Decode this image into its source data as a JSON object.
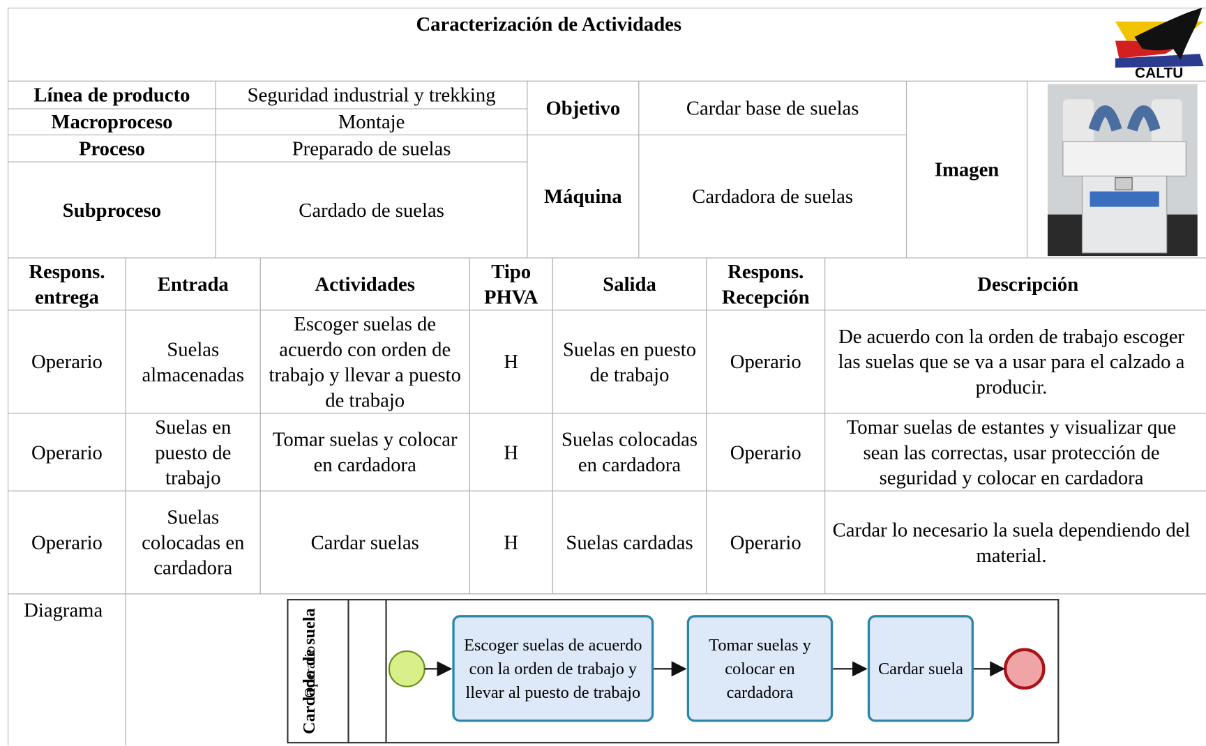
{
  "header": {
    "title": "Caracterización de Actividades",
    "logo_text": "CALTU"
  },
  "info": {
    "rows": [
      {
        "label": "Línea de producto",
        "value": "Seguridad industrial y trekking"
      },
      {
        "label": "Macroproceso",
        "value": "Montaje"
      },
      {
        "label": "Proceso",
        "value": "Preparado de suelas"
      },
      {
        "label": "Subproceso",
        "value": "Cardado de suelas"
      }
    ],
    "objective": {
      "label": "Objetivo",
      "value": "Cardar base de suelas"
    },
    "machine": {
      "label": "Máquina",
      "value": "Cardadora de suelas"
    },
    "image_label": "Imagen"
  },
  "table": {
    "headers": [
      "Respons. entrega",
      "Entrada",
      "Actividades",
      "Tipo PHVA",
      "Salida",
      "Respons. Recepción",
      "Descripción"
    ],
    "rows": [
      [
        "Operario",
        "Suelas almacenadas",
        "Escoger suelas de acuerdo con orden de trabajo y llevar a puesto de trabajo",
        "H",
        "Suelas en puesto de trabajo",
        "Operario",
        "De acuerdo con la orden de trabajo escoger las suelas que se va a usar para el calzado a producir."
      ],
      [
        "Operario",
        "Suelas en puesto de trabajo",
        "Tomar suelas y colocar en cardadora",
        "H",
        "Suelas colocadas en cardadora",
        "Operario",
        "Tomar suelas de estantes y visualizar que sean las correctas, usar protección de seguridad y colocar en cardadora"
      ],
      [
        "Operario",
        "Suelas colocadas en cardadora",
        "Cardar suelas",
        "H",
        "Suelas cardadas",
        "Operario",
        "Cardar lo necesario la suela dependiendo del material."
      ]
    ]
  },
  "diagram": {
    "label": "Diagrama",
    "pool": "Cardado de suela",
    "lane": "Operario",
    "tasks": [
      "Escoger suelas de acuerdo con la orden de trabajo y llevar al puesto de trabajo",
      "Tomar suelas y colocar en cardadora",
      "Cardar suela"
    ]
  }
}
